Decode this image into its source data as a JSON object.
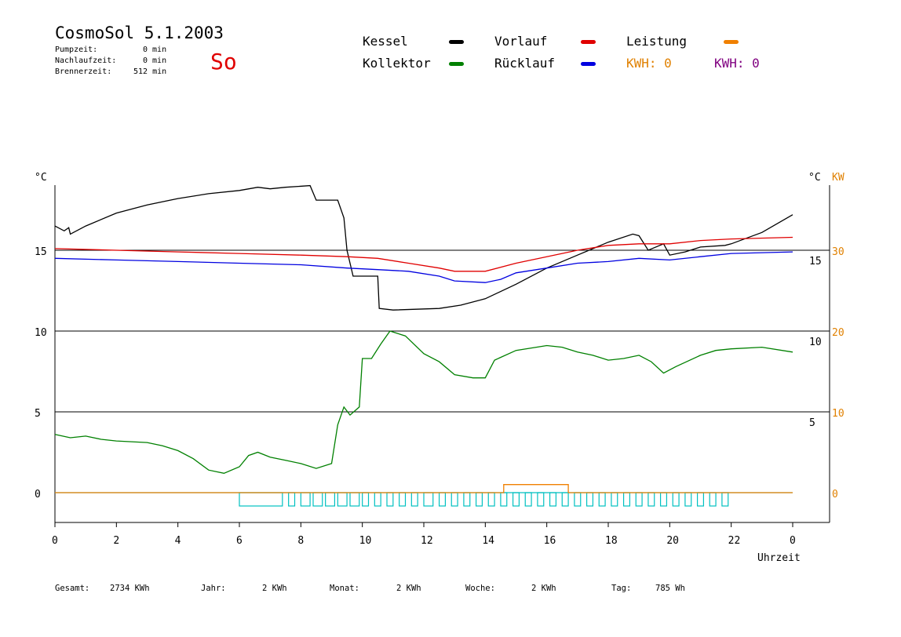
{
  "header": {
    "title": "CosmoSol 5.1.2003",
    "day": "So",
    "info": [
      {
        "label": "Pumpzeit:",
        "value": "0 min"
      },
      {
        "label": "Nachlaufzeit:",
        "value": "0 min"
      },
      {
        "label": "Brennerzeit:",
        "value": "512 min"
      }
    ]
  },
  "legend": {
    "items": [
      {
        "label": "Kessel",
        "color": "#000000"
      },
      {
        "label": "Vorlauf",
        "color": "#e00000"
      },
      {
        "label": "Leistung",
        "color": "#f08000"
      },
      {
        "label": "Kollektor",
        "color": "#008000"
      },
      {
        "label": "Rücklauf",
        "color": "#0000e0"
      }
    ],
    "kwh": [
      {
        "text": "KWH: 0",
        "color": "#e08000"
      },
      {
        "text": "KWH: 0",
        "color": "#800080"
      }
    ]
  },
  "footer": [
    {
      "label": "Gesamt:",
      "value": "2734 KWh"
    },
    {
      "label": "Jahr:",
      "value": "2 KWh"
    },
    {
      "label": "Monat:",
      "value": "2 KWh"
    },
    {
      "label": "Woche:",
      "value": "2 KWh"
    },
    {
      "label": "Tag:",
      "value": "785 Wh"
    }
  ],
  "chart_data": {
    "type": "line",
    "xlabel": "Uhrzeit",
    "x_ticks": [
      "0",
      "2",
      "4",
      "6",
      "8",
      "10",
      "12",
      "14",
      "16",
      "18",
      "20",
      "22",
      "0"
    ],
    "x_range_hours": [
      0,
      24
    ],
    "y_left": {
      "unit": "°C",
      "ticks": [
        0,
        5,
        10,
        15
      ],
      "range": [
        -1.5,
        19
      ]
    },
    "y_right_temp": {
      "unit": "°C",
      "ticks": [
        5,
        10,
        15
      ]
    },
    "y_right_power": {
      "unit": "KW",
      "ticks": [
        0,
        10,
        20,
        30
      ],
      "color": "#e08000"
    },
    "grid": "horizontal",
    "series": [
      {
        "name": "Kessel",
        "color": "#000000",
        "points": [
          [
            0,
            16.5
          ],
          [
            0.3,
            16.2
          ],
          [
            0.45,
            16.4
          ],
          [
            0.5,
            16.0
          ],
          [
            1,
            16.5
          ],
          [
            2,
            17.3
          ],
          [
            3,
            17.8
          ],
          [
            4,
            18.2
          ],
          [
            5,
            18.5
          ],
          [
            6,
            18.7
          ],
          [
            6.6,
            18.9
          ],
          [
            7,
            18.8
          ],
          [
            7.5,
            18.9
          ],
          [
            8.3,
            19.0
          ],
          [
            8.5,
            18.1
          ],
          [
            9.2,
            18.1
          ],
          [
            9.4,
            17.0
          ],
          [
            9.5,
            15.0
          ],
          [
            9.7,
            13.4
          ],
          [
            10.5,
            13.4
          ],
          [
            10.55,
            11.4
          ],
          [
            11,
            11.3
          ],
          [
            12.5,
            11.4
          ],
          [
            13.2,
            11.6
          ],
          [
            14,
            12.0
          ],
          [
            15,
            12.9
          ],
          [
            16,
            13.9
          ],
          [
            17,
            14.7
          ],
          [
            18,
            15.5
          ],
          [
            18.8,
            16.0
          ],
          [
            19,
            15.9
          ],
          [
            19.3,
            15.0
          ],
          [
            19.8,
            15.4
          ],
          [
            20,
            14.7
          ],
          [
            20.5,
            14.9
          ],
          [
            21,
            15.2
          ],
          [
            21.8,
            15.3
          ],
          [
            22,
            15.4
          ],
          [
            23,
            16.1
          ],
          [
            24,
            17.2
          ]
        ]
      },
      {
        "name": "Vorlauf",
        "color": "#e00000",
        "points": [
          [
            0,
            15.1
          ],
          [
            2,
            15.0
          ],
          [
            4,
            14.9
          ],
          [
            6,
            14.8
          ],
          [
            8,
            14.7
          ],
          [
            9.5,
            14.6
          ],
          [
            10.5,
            14.5
          ],
          [
            11.5,
            14.2
          ],
          [
            12.5,
            13.9
          ],
          [
            13,
            13.7
          ],
          [
            14,
            13.7
          ],
          [
            15,
            14.2
          ],
          [
            16,
            14.6
          ],
          [
            17,
            15.0
          ],
          [
            18,
            15.3
          ],
          [
            19,
            15.4
          ],
          [
            20,
            15.4
          ],
          [
            21,
            15.6
          ],
          [
            22,
            15.7
          ],
          [
            24,
            15.8
          ]
        ]
      },
      {
        "name": "Rücklauf",
        "color": "#0000e0",
        "points": [
          [
            0,
            14.5
          ],
          [
            2,
            14.4
          ],
          [
            4,
            14.3
          ],
          [
            6,
            14.2
          ],
          [
            8,
            14.1
          ],
          [
            9.5,
            13.9
          ],
          [
            10.5,
            13.8
          ],
          [
            11.5,
            13.7
          ],
          [
            12.5,
            13.4
          ],
          [
            13,
            13.1
          ],
          [
            14,
            13.0
          ],
          [
            14.5,
            13.2
          ],
          [
            15,
            13.6
          ],
          [
            16,
            13.9
          ],
          [
            17,
            14.2
          ],
          [
            18,
            14.3
          ],
          [
            19,
            14.5
          ],
          [
            20,
            14.4
          ],
          [
            21,
            14.6
          ],
          [
            22,
            14.8
          ],
          [
            24,
            14.9
          ]
        ]
      },
      {
        "name": "Kollektor",
        "color": "#008000",
        "points": [
          [
            0,
            3.6
          ],
          [
            0.5,
            3.4
          ],
          [
            1,
            3.5
          ],
          [
            1.5,
            3.3
          ],
          [
            2,
            3.2
          ],
          [
            3,
            3.1
          ],
          [
            3.5,
            2.9
          ],
          [
            4,
            2.6
          ],
          [
            4.5,
            2.1
          ],
          [
            5,
            1.4
          ],
          [
            5.5,
            1.2
          ],
          [
            6,
            1.6
          ],
          [
            6.3,
            2.3
          ],
          [
            6.6,
            2.5
          ],
          [
            7,
            2.2
          ],
          [
            7.5,
            2.0
          ],
          [
            8,
            1.8
          ],
          [
            8.5,
            1.5
          ],
          [
            9,
            1.8
          ],
          [
            9.2,
            4.2
          ],
          [
            9.4,
            5.3
          ],
          [
            9.6,
            4.8
          ],
          [
            9.9,
            5.3
          ],
          [
            10,
            8.3
          ],
          [
            10.3,
            8.3
          ],
          [
            10.6,
            9.2
          ],
          [
            10.9,
            10.0
          ],
          [
            11.4,
            9.7
          ],
          [
            12,
            8.6
          ],
          [
            12.5,
            8.1
          ],
          [
            13,
            7.3
          ],
          [
            13.6,
            7.1
          ],
          [
            14,
            7.1
          ],
          [
            14.3,
            8.2
          ],
          [
            15,
            8.8
          ],
          [
            16,
            9.1
          ],
          [
            16.5,
            9.0
          ],
          [
            17,
            8.7
          ],
          [
            17.5,
            8.5
          ],
          [
            18,
            8.2
          ],
          [
            18.5,
            8.3
          ],
          [
            19,
            8.5
          ],
          [
            19.4,
            8.1
          ],
          [
            19.8,
            7.4
          ],
          [
            20.2,
            7.8
          ],
          [
            21,
            8.5
          ],
          [
            21.5,
            8.8
          ],
          [
            22,
            8.9
          ],
          [
            23,
            9.0
          ],
          [
            24,
            8.7
          ]
        ]
      }
    ],
    "burner_blocks_hours": [
      [
        6.0,
        7.4
      ],
      [
        7.6,
        7.8
      ],
      [
        8.0,
        8.3
      ],
      [
        8.4,
        8.7
      ],
      [
        8.8,
        9.1
      ],
      [
        9.2,
        9.5
      ],
      [
        9.6,
        9.9
      ],
      [
        10.0,
        10.2
      ],
      [
        10.4,
        10.6
      ],
      [
        10.8,
        11.0
      ],
      [
        11.2,
        11.4
      ],
      [
        11.6,
        11.8
      ],
      [
        12.0,
        12.3
      ],
      [
        12.5,
        12.7
      ],
      [
        12.9,
        13.1
      ],
      [
        13.3,
        13.5
      ],
      [
        13.7,
        13.9
      ],
      [
        14.1,
        14.3
      ],
      [
        14.5,
        14.7
      ],
      [
        14.9,
        15.1
      ],
      [
        15.3,
        15.5
      ],
      [
        15.7,
        15.9
      ],
      [
        16.1,
        16.3
      ],
      [
        16.5,
        16.7
      ],
      [
        16.9,
        17.1
      ],
      [
        17.3,
        17.5
      ],
      [
        17.7,
        17.9
      ],
      [
        18.1,
        18.3
      ],
      [
        18.5,
        18.7
      ],
      [
        18.9,
        19.1
      ],
      [
        19.3,
        19.5
      ],
      [
        19.7,
        19.9
      ],
      [
        20.1,
        20.3
      ],
      [
        20.5,
        20.7
      ],
      [
        20.9,
        21.1
      ],
      [
        21.3,
        21.5
      ],
      [
        21.7,
        21.9
      ]
    ],
    "power_series": {
      "name": "Leistung",
      "color": "#f08000",
      "points": [
        [
          0,
          0
        ],
        [
          14.6,
          0
        ],
        [
          14.6,
          0.5
        ],
        [
          16.7,
          0.5
        ],
        [
          16.7,
          0
        ],
        [
          24,
          0
        ]
      ]
    }
  }
}
